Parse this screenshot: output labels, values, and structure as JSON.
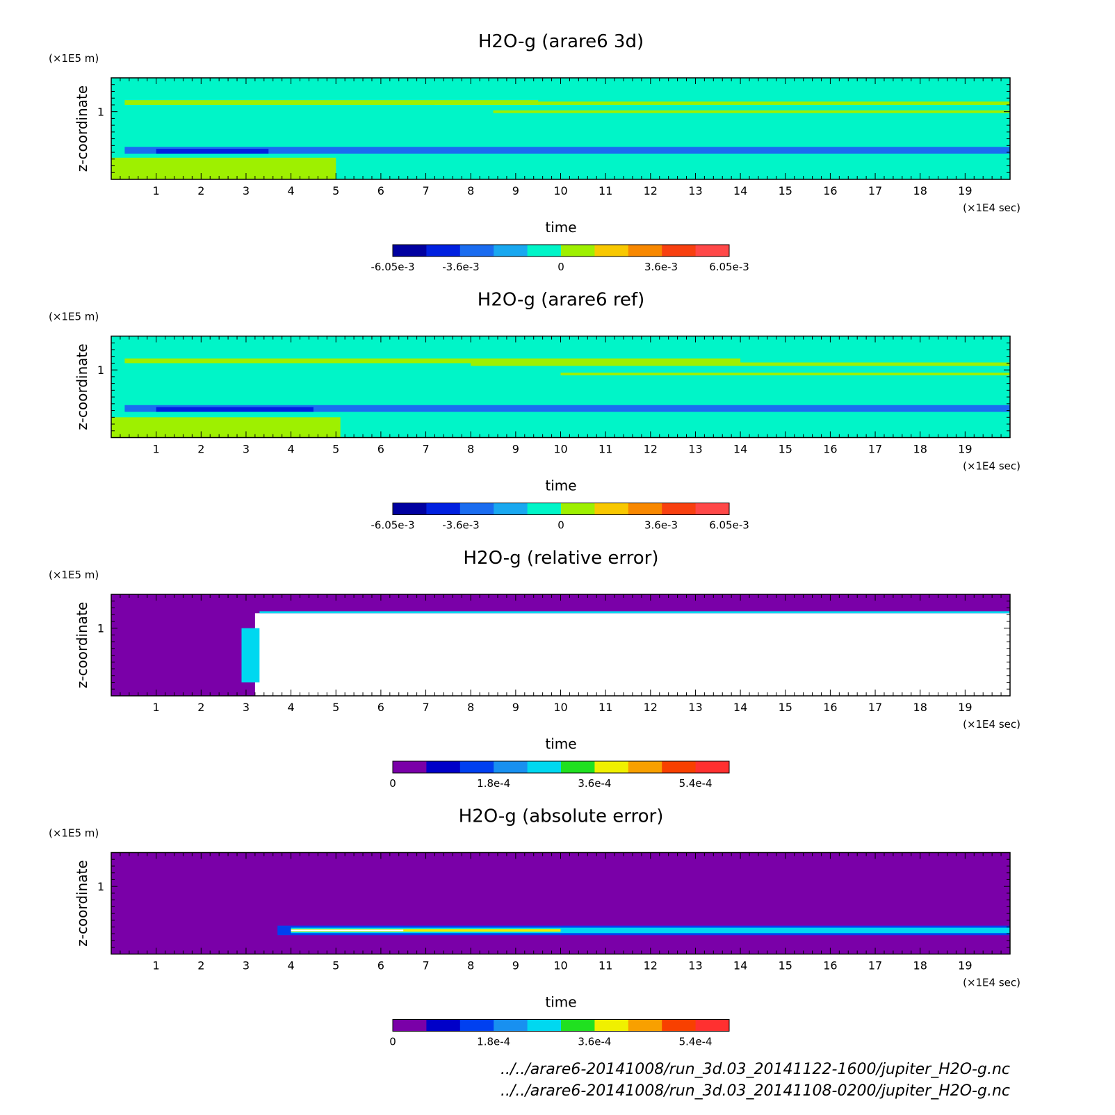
{
  "panel_common": {
    "z_unit": "(×1E5 m)",
    "t_unit": "(×1E4 sec)",
    "xlabel": "time",
    "ylabel": "z-coordinate",
    "x_ticks": [
      "1",
      "2",
      "3",
      "4",
      "5",
      "6",
      "7",
      "8",
      "9",
      "10",
      "11",
      "12",
      "13",
      "14",
      "15",
      "16",
      "17",
      "18",
      "19"
    ],
    "y_ticks": [
      "1"
    ]
  },
  "chart_data": [
    {
      "type": "heatmap",
      "title": "H2O-g (arare6 3d)",
      "xlabel": "time",
      "ylabel": "z-coordinate",
      "x_unit": "(×1E4 sec)",
      "y_unit": "(×1E5 m)",
      "xlim": [
        0,
        20
      ],
      "ylim": [
        0,
        1.5
      ],
      "colorbar": {
        "ticks": [
          "-6.05e-3",
          "-3.6e-3",
          "0",
          "3.6e-3",
          "6.05e-3"
        ],
        "range": [
          -0.00605,
          0.00605
        ],
        "colors": [
          "#0000a0",
          "#0020e0",
          "#1a6cf0",
          "#19a8f0",
          "#00f5c8",
          "#9ef000",
          "#f8c800",
          "#f88800",
          "#f84010",
          "#ff4848"
        ]
      },
      "regions": [
        {
          "t": [
            0,
            20
          ],
          "z": [
            0,
            1.5
          ],
          "color": "#00f5c8"
        },
        {
          "t": [
            0.3,
            20
          ],
          "z": [
            0.38,
            0.48
          ],
          "color": "#1a6cf0"
        },
        {
          "t": [
            1,
            3.5
          ],
          "z": [
            0.38,
            0.45
          ],
          "color": "#0020e0"
        },
        {
          "t": [
            0,
            5
          ],
          "z": [
            0,
            0.32
          ],
          "color": "#9ef000"
        },
        {
          "t": [
            0.3,
            9.5
          ],
          "z": [
            1.1,
            1.17
          ],
          "color": "#9ef000"
        },
        {
          "t": [
            7.2,
            20
          ],
          "z": [
            1.1,
            1.15
          ],
          "color": "#9ef000"
        },
        {
          "t": [
            8.5,
            20
          ],
          "z": [
            0.98,
            1.02
          ],
          "color": "#9ef000"
        }
      ]
    },
    {
      "type": "heatmap",
      "title": "H2O-g (arare6 ref)",
      "xlabel": "time",
      "ylabel": "z-coordinate",
      "x_unit": "(×1E4 sec)",
      "y_unit": "(×1E5 m)",
      "xlim": [
        0,
        20
      ],
      "ylim": [
        0,
        1.5
      ],
      "colorbar": {
        "ticks": [
          "-6.05e-3",
          "-3.6e-3",
          "0",
          "3.6e-3",
          "6.05e-3"
        ],
        "range": [
          -0.00605,
          0.00605
        ],
        "colors": [
          "#0000a0",
          "#0020e0",
          "#1a6cf0",
          "#19a8f0",
          "#00f5c8",
          "#9ef000",
          "#f8c800",
          "#f88800",
          "#f84010",
          "#ff4848"
        ]
      },
      "regions": [
        {
          "t": [
            0,
            20
          ],
          "z": [
            0,
            1.5
          ],
          "color": "#00f5c8"
        },
        {
          "t": [
            0.3,
            20
          ],
          "z": [
            0.38,
            0.48
          ],
          "color": "#1a6cf0"
        },
        {
          "t": [
            1,
            4.5
          ],
          "z": [
            0.38,
            0.45
          ],
          "color": "#0020e0"
        },
        {
          "t": [
            0,
            5.1
          ],
          "z": [
            0,
            0.3
          ],
          "color": "#9ef000"
        },
        {
          "t": [
            0.3,
            14
          ],
          "z": [
            1.1,
            1.17
          ],
          "color": "#9ef000"
        },
        {
          "t": [
            8,
            20
          ],
          "z": [
            1.06,
            1.11
          ],
          "color": "#9ef000"
        },
        {
          "t": [
            10,
            20
          ],
          "z": [
            0.92,
            0.96
          ],
          "color": "#9ef000"
        }
      ]
    },
    {
      "type": "heatmap",
      "title": "H2O-g (relative error)",
      "xlabel": "time",
      "ylabel": "z-coordinate",
      "x_unit": "(×1E4 sec)",
      "y_unit": "(×1E5 m)",
      "xlim": [
        0,
        20
      ],
      "ylim": [
        0,
        1.5
      ],
      "colorbar": {
        "ticks": [
          "0",
          "1.8e-4",
          "3.6e-4",
          "5.4e-4"
        ],
        "range": [
          0,
          0.0006
        ],
        "colors": [
          "#7a00a8",
          "#0000c8",
          "#0040f0",
          "#1890f0",
          "#00d8f0",
          "#20e020",
          "#f0f000",
          "#f8a000",
          "#f84000",
          "#ff3030"
        ]
      },
      "regions": [
        {
          "t": [
            0,
            20
          ],
          "z": [
            0,
            1.5
          ],
          "color": "#7a00a8"
        },
        {
          "t": [
            3.2,
            20
          ],
          "z": [
            0,
            1.22
          ],
          "color": "#ffffff"
        },
        {
          "t": [
            2.9,
            3.3
          ],
          "z": [
            0.2,
            1.0
          ],
          "color": "#00d8f0"
        },
        {
          "t": [
            3.3,
            20
          ],
          "z": [
            1.22,
            1.25
          ],
          "color": "#00d8f0"
        }
      ]
    },
    {
      "type": "heatmap",
      "title": "H2O-g (absolute error)",
      "xlabel": "time",
      "ylabel": "z-coordinate",
      "x_unit": "(×1E4 sec)",
      "y_unit": "(×1E5 m)",
      "xlim": [
        0,
        20
      ],
      "ylim": [
        0,
        1.5
      ],
      "colorbar": {
        "ticks": [
          "0",
          "1.8e-4",
          "3.6e-4",
          "5.4e-4"
        ],
        "range": [
          0,
          0.0006
        ],
        "colors": [
          "#7a00a8",
          "#0000c8",
          "#0040f0",
          "#1890f0",
          "#00d8f0",
          "#20e020",
          "#f0f000",
          "#f8a000",
          "#f84000",
          "#ff3030"
        ]
      },
      "regions": [
        {
          "t": [
            0,
            20
          ],
          "z": [
            0,
            1.5
          ],
          "color": "#7a00a8"
        },
        {
          "t": [
            3.7,
            20
          ],
          "z": [
            0.28,
            0.42
          ],
          "color": "#0040f0"
        },
        {
          "t": [
            4,
            20
          ],
          "z": [
            0.31,
            0.39
          ],
          "color": "#00d8f0"
        },
        {
          "t": [
            4,
            10
          ],
          "z": [
            0.33,
            0.37
          ],
          "color": "#f0f000"
        },
        {
          "t": [
            4,
            6.5
          ],
          "z": [
            0.34,
            0.36
          ],
          "color": "#ffffff"
        }
      ]
    }
  ],
  "footer": {
    "line1": "../../arare6-20141008/run_3d.03_20141122-1600/jupiter_H2O-g.nc",
    "line2": "../../arare6-20141008/run_3d.03_20141108-0200/jupiter_H2O-g.nc"
  }
}
